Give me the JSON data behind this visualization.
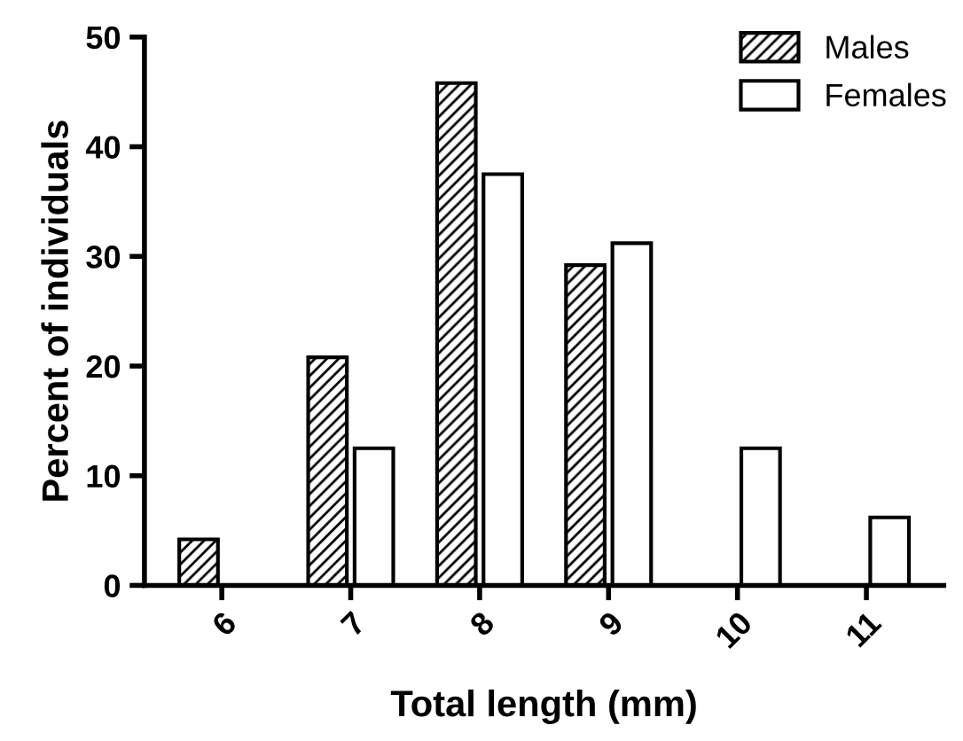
{
  "chart_data": {
    "type": "bar",
    "xlabel": "Total length (mm)",
    "ylabel": "Percent of individuals",
    "categories": [
      "6",
      "7",
      "8",
      "9",
      "10",
      "11"
    ],
    "series": [
      {
        "name": "Males",
        "color": "#000000",
        "values": [
          4.2,
          20.8,
          45.8,
          29.2,
          0,
          0
        ]
      },
      {
        "name": "Females",
        "color": "#ffffff",
        "values": [
          0,
          12.5,
          37.5,
          31.2,
          12.5,
          6.2
        ]
      }
    ],
    "ylim": [
      0,
      50
    ],
    "yticks": [
      0,
      10,
      20,
      30,
      40,
      50
    ],
    "grid": false,
    "legend": "top right"
  }
}
